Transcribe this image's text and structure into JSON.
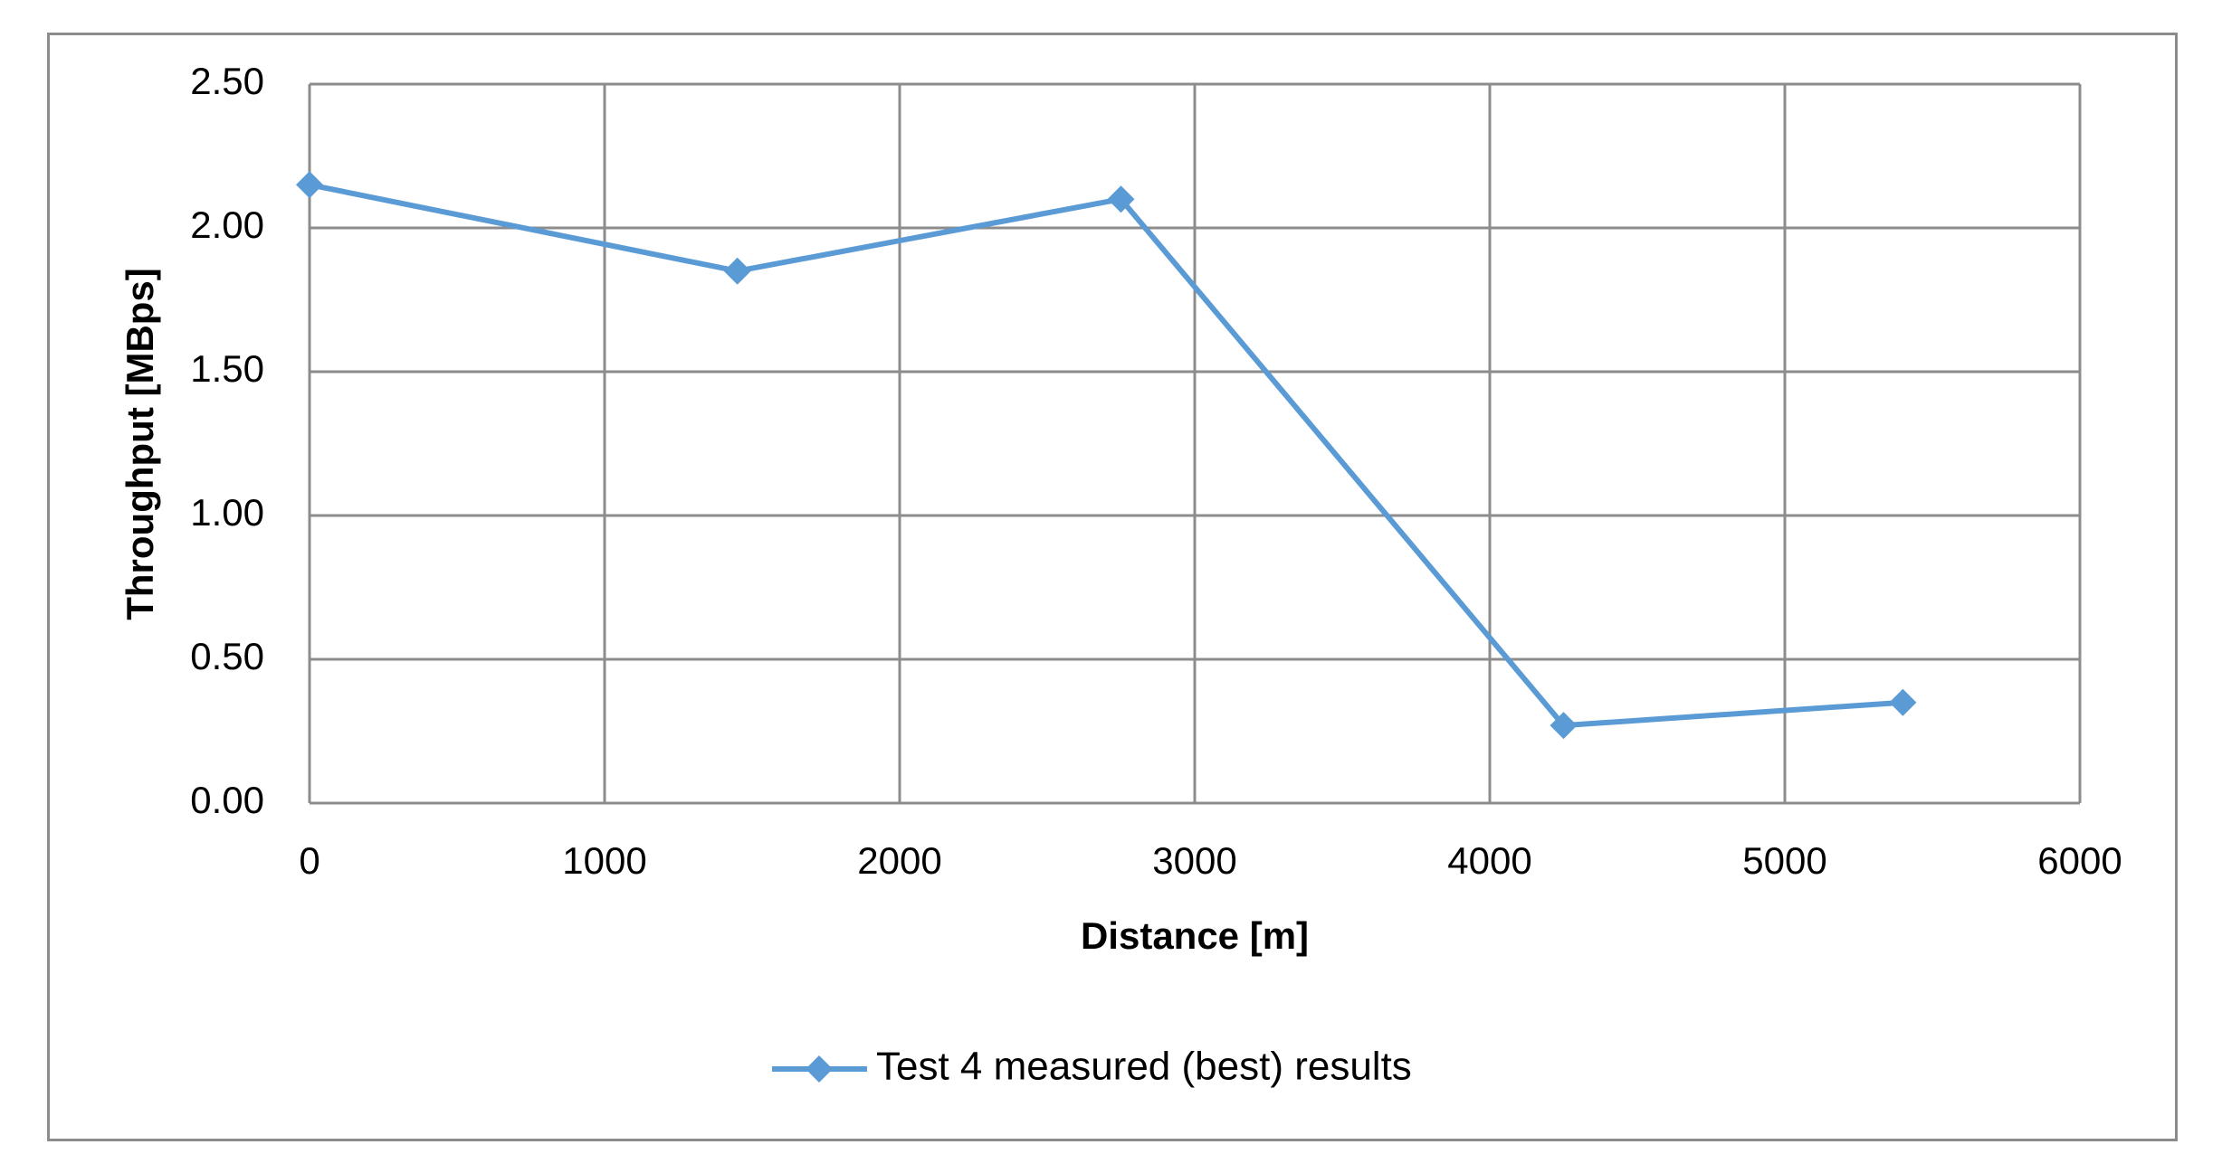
{
  "chart_data": {
    "type": "line",
    "title": "",
    "xlabel": "Distance [m]",
    "ylabel": "Throughput [MBps]",
    "xlim": [
      0,
      6000
    ],
    "ylim": [
      0,
      2.5
    ],
    "x_ticks": [
      "0",
      "1000",
      "2000",
      "3000",
      "4000",
      "5000",
      "6000"
    ],
    "y_ticks": [
      "0.00",
      "0.50",
      "1.00",
      "1.50",
      "2.00",
      "2.50"
    ],
    "grid": true,
    "legend_position": "bottom",
    "series": [
      {
        "name": "Test 4 measured (best) results",
        "color": "#5B9BD5",
        "marker": "diamond",
        "x": [
          0,
          1450,
          2750,
          4250,
          5400
        ],
        "values": [
          2.15,
          1.85,
          2.1,
          0.27,
          0.35
        ]
      }
    ]
  },
  "colors": {
    "series": "#5B9BD5",
    "grid": "#8c8c8c",
    "frame": "#8c8c8c"
  }
}
